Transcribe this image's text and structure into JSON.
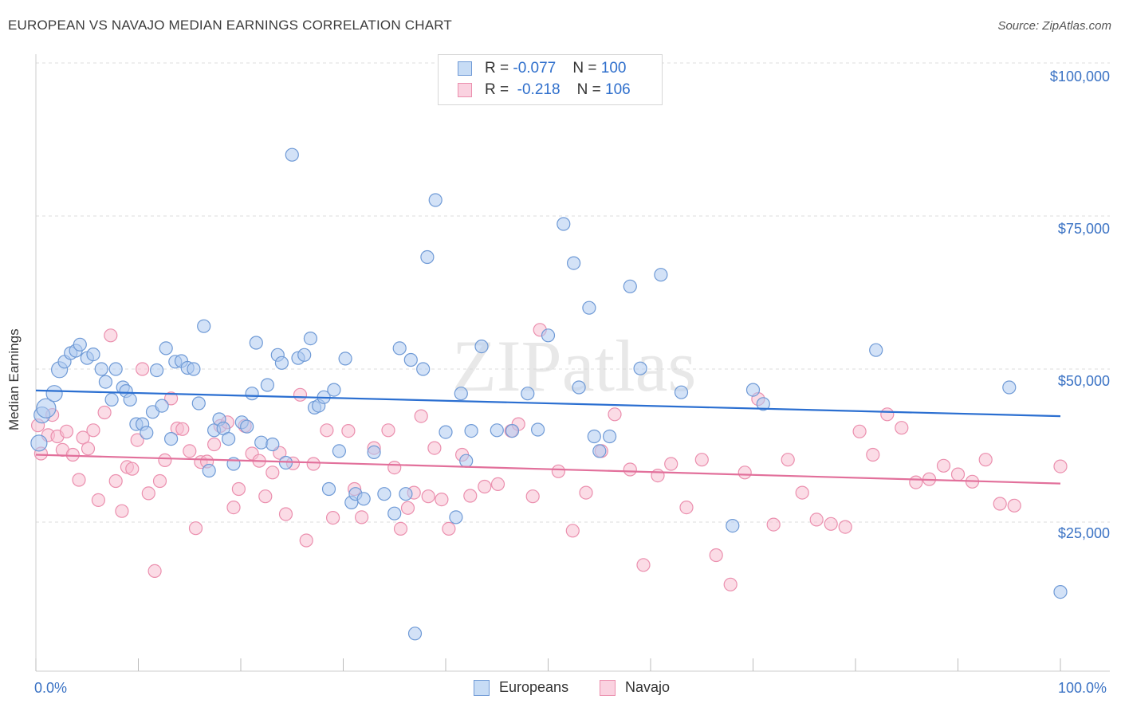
{
  "header": {
    "title": "EUROPEAN VS NAVAJO MEDIAN EARNINGS CORRELATION CHART",
    "source": "Source: ZipAtlas.com"
  },
  "watermark": "ZIPatlas",
  "legend": {
    "rows": [
      {
        "r_label": "R = ",
        "r_value": "-0.077",
        "n_label": "N = ",
        "n_value": "100"
      },
      {
        "r_label": "R = ",
        "r_value": " -0.218",
        "n_label": "N = ",
        "n_value": "106"
      }
    ]
  },
  "bottom_legend": {
    "items": [
      "Europeans",
      "Navajo"
    ]
  },
  "colors": {
    "europeans_fill": "#aecbf0",
    "europeans_stroke": "#6f9ad6",
    "europeans_line": "#2b6fd1",
    "navajo_fill": "#f7c0d2",
    "navajo_stroke": "#eb8fae",
    "navajo_line": "#e2709b",
    "tick_label": "#3a72c4",
    "grid": "#dddddd"
  },
  "chart_data": {
    "type": "scatter",
    "title": "EUROPEAN VS NAVAJO MEDIAN EARNINGS CORRELATION CHART",
    "xlabel": "",
    "ylabel": "Median Earnings",
    "xlim": [
      0,
      100
    ],
    "ylim": [
      0,
      105000
    ],
    "x_tick_labels": [
      "0.0%",
      "100.0%"
    ],
    "y_ticks": [
      25000,
      50000,
      75000,
      100000
    ],
    "y_tick_labels": [
      "$25,000",
      "$50,000",
      "$75,000",
      "$100,000"
    ],
    "grid": "horizontal dashed",
    "legend_position": "top-center",
    "series": [
      {
        "name": "Europeans",
        "trend": {
          "x": [
            0,
            100
          ],
          "y": [
            46500,
            42300
          ]
        },
        "points": [
          [
            0.3,
            37900
          ],
          [
            0.6,
            42500
          ],
          [
            1.0,
            43600
          ],
          [
            1.8,
            46000
          ],
          [
            2.3,
            49900
          ],
          [
            2.8,
            51200
          ],
          [
            3.4,
            52600
          ],
          [
            3.9,
            53000
          ],
          [
            4.3,
            54000
          ],
          [
            5.0,
            51800
          ],
          [
            5.6,
            52400
          ],
          [
            6.4,
            50000
          ],
          [
            6.8,
            47900
          ],
          [
            7.4,
            45000
          ],
          [
            7.8,
            50000
          ],
          [
            8.5,
            47000
          ],
          [
            8.8,
            46400
          ],
          [
            9.2,
            45000
          ],
          [
            9.8,
            41000
          ],
          [
            10.4,
            41000
          ],
          [
            10.8,
            39600
          ],
          [
            11.4,
            43000
          ],
          [
            11.8,
            49800
          ],
          [
            12.3,
            44000
          ],
          [
            12.7,
            53400
          ],
          [
            13.2,
            38600
          ],
          [
            13.6,
            51200
          ],
          [
            14.2,
            51300
          ],
          [
            14.8,
            50200
          ],
          [
            15.4,
            50000
          ],
          [
            15.9,
            44400
          ],
          [
            16.4,
            57000
          ],
          [
            16.9,
            33400
          ],
          [
            17.4,
            40000
          ],
          [
            17.9,
            41800
          ],
          [
            18.3,
            40300
          ],
          [
            18.8,
            38600
          ],
          [
            19.3,
            34500
          ],
          [
            20.1,
            41300
          ],
          [
            20.6,
            40600
          ],
          [
            21.1,
            46000
          ],
          [
            21.5,
            54300
          ],
          [
            22.0,
            38000
          ],
          [
            22.6,
            47400
          ],
          [
            23.1,
            37700
          ],
          [
            23.6,
            52300
          ],
          [
            24.0,
            51000
          ],
          [
            24.4,
            34700
          ],
          [
            25.0,
            85000
          ],
          [
            25.6,
            51800
          ],
          [
            26.2,
            52300
          ],
          [
            26.8,
            55000
          ],
          [
            27.2,
            43700
          ],
          [
            27.6,
            44000
          ],
          [
            28.1,
            45400
          ],
          [
            28.6,
            30400
          ],
          [
            29.1,
            46600
          ],
          [
            29.6,
            36600
          ],
          [
            30.2,
            51700
          ],
          [
            30.8,
            28200
          ],
          [
            31.2,
            29600
          ],
          [
            32.0,
            28800
          ],
          [
            33.0,
            36400
          ],
          [
            34.0,
            29600
          ],
          [
            35.0,
            26400
          ],
          [
            35.5,
            53400
          ],
          [
            36.1,
            29600
          ],
          [
            36.6,
            51500
          ],
          [
            37.0,
            6800
          ],
          [
            37.8,
            50000
          ],
          [
            39.0,
            77600
          ],
          [
            38.2,
            68300
          ],
          [
            40.0,
            39700
          ],
          [
            41.0,
            25800
          ],
          [
            42.0,
            35000
          ],
          [
            41.5,
            46000
          ],
          [
            42.5,
            39900
          ],
          [
            43.5,
            53700
          ],
          [
            45.0,
            40000
          ],
          [
            46.5,
            39900
          ],
          [
            48.0,
            46000
          ],
          [
            49.0,
            40100
          ],
          [
            50.0,
            55500
          ],
          [
            51.5,
            73700
          ],
          [
            52.5,
            67300
          ],
          [
            53.0,
            47000
          ],
          [
            54.0,
            60000
          ],
          [
            54.5,
            39000
          ],
          [
            55.0,
            36600
          ],
          [
            56.0,
            39000
          ],
          [
            58.0,
            63500
          ],
          [
            59.0,
            50100
          ],
          [
            61.0,
            65400
          ],
          [
            63.0,
            46200
          ],
          [
            68.0,
            24400
          ],
          [
            70.0,
            46600
          ],
          [
            71.0,
            44300
          ],
          [
            82.0,
            53100
          ],
          [
            95.0,
            47000
          ],
          [
            100.0,
            13600
          ]
        ]
      },
      {
        "name": "Navajo",
        "trend": {
          "x": [
            0,
            100
          ],
          "y": [
            36000,
            31300
          ]
        },
        "points": [
          [
            0.2,
            40800
          ],
          [
            0.5,
            36200
          ],
          [
            1.2,
            39200
          ],
          [
            1.6,
            42500
          ],
          [
            2.1,
            39000
          ],
          [
            2.6,
            36800
          ],
          [
            3.0,
            39800
          ],
          [
            3.6,
            36000
          ],
          [
            4.2,
            31900
          ],
          [
            4.6,
            38800
          ],
          [
            5.1,
            37000
          ],
          [
            5.6,
            40000
          ],
          [
            6.1,
            28600
          ],
          [
            6.7,
            42900
          ],
          [
            7.3,
            55500
          ],
          [
            7.8,
            31700
          ],
          [
            8.4,
            26800
          ],
          [
            8.9,
            34000
          ],
          [
            9.4,
            33700
          ],
          [
            9.9,
            38400
          ],
          [
            10.4,
            50000
          ],
          [
            11.0,
            29700
          ],
          [
            11.6,
            17000
          ],
          [
            12.1,
            31700
          ],
          [
            12.6,
            35100
          ],
          [
            13.2,
            45200
          ],
          [
            13.8,
            40300
          ],
          [
            14.3,
            40200
          ],
          [
            15.0,
            36600
          ],
          [
            15.6,
            24000
          ],
          [
            16.1,
            34800
          ],
          [
            16.7,
            34900
          ],
          [
            17.4,
            37700
          ],
          [
            18.0,
            40700
          ],
          [
            18.7,
            41300
          ],
          [
            19.3,
            27400
          ],
          [
            19.8,
            30400
          ],
          [
            20.4,
            40700
          ],
          [
            21.1,
            36200
          ],
          [
            21.8,
            35000
          ],
          [
            22.4,
            29200
          ],
          [
            23.1,
            33100
          ],
          [
            23.8,
            36300
          ],
          [
            24.4,
            26300
          ],
          [
            25.1,
            34600
          ],
          [
            25.8,
            45800
          ],
          [
            26.4,
            22000
          ],
          [
            27.1,
            34500
          ],
          [
            28.4,
            40000
          ],
          [
            29.0,
            25700
          ],
          [
            30.5,
            39900
          ],
          [
            31.1,
            30400
          ],
          [
            31.8,
            25800
          ],
          [
            33.0,
            37100
          ],
          [
            34.4,
            40000
          ],
          [
            35.0,
            33900
          ],
          [
            35.6,
            23900
          ],
          [
            36.3,
            27300
          ],
          [
            36.9,
            29800
          ],
          [
            37.6,
            42300
          ],
          [
            38.3,
            29200
          ],
          [
            38.9,
            37100
          ],
          [
            39.6,
            28700
          ],
          [
            40.3,
            23900
          ],
          [
            41.6,
            36000
          ],
          [
            42.4,
            29300
          ],
          [
            43.8,
            30800
          ],
          [
            45.1,
            31200
          ],
          [
            46.4,
            39900
          ],
          [
            47.1,
            41000
          ],
          [
            48.5,
            29200
          ],
          [
            49.2,
            56400
          ],
          [
            51.0,
            33300
          ],
          [
            52.4,
            23600
          ],
          [
            53.7,
            29800
          ],
          [
            55.2,
            36600
          ],
          [
            56.5,
            42600
          ],
          [
            58.0,
            33600
          ],
          [
            59.3,
            18000
          ],
          [
            60.7,
            32600
          ],
          [
            62.0,
            34500
          ],
          [
            63.5,
            27400
          ],
          [
            65.0,
            35200
          ],
          [
            66.4,
            19600
          ],
          [
            67.8,
            14800
          ],
          [
            69.2,
            33100
          ],
          [
            70.5,
            45100
          ],
          [
            72.0,
            24600
          ],
          [
            73.4,
            35200
          ],
          [
            74.8,
            29800
          ],
          [
            76.2,
            25400
          ],
          [
            77.6,
            24700
          ],
          [
            79.0,
            24200
          ],
          [
            80.4,
            39800
          ],
          [
            81.7,
            36000
          ],
          [
            83.1,
            42600
          ],
          [
            84.5,
            40400
          ],
          [
            85.9,
            31500
          ],
          [
            87.2,
            32000
          ],
          [
            88.6,
            34200
          ],
          [
            90.0,
            32800
          ],
          [
            91.4,
            31600
          ],
          [
            92.7,
            35200
          ],
          [
            94.1,
            28000
          ],
          [
            95.5,
            27700
          ],
          [
            100.0,
            34100
          ]
        ]
      }
    ]
  }
}
